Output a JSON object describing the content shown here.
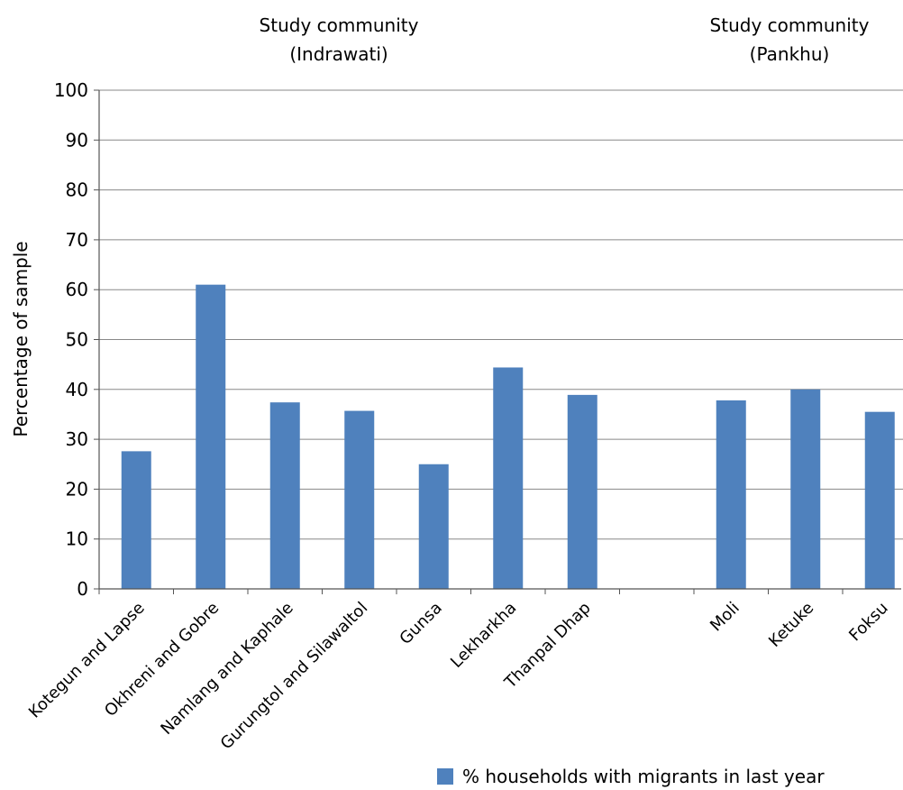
{
  "chart_data": {
    "type": "bar",
    "categories": [
      "Kotegun and Lapse",
      "Okhreni and Gobre",
      "Namlang and Kaphale",
      "Gurungtol and Silawaltol",
      "Gunsa",
      "Lekharkha",
      "Thanpal Dhap",
      "",
      "Moli",
      "Ketuke",
      "Foksu"
    ],
    "series": [
      {
        "name": "% households with migrants in last year",
        "values": [
          27.6,
          61,
          37.4,
          35.7,
          25,
          44.4,
          38.9,
          null,
          37.8,
          40,
          35.5
        ],
        "color": "#4f81bd"
      }
    ],
    "group_titles": [
      {
        "line1": "Study community",
        "line2": "(Indrawati)"
      },
      {
        "line1": "Study community",
        "line2": "(Pankhu)"
      }
    ],
    "ylabel": "Percentage of sample",
    "xlabel": "",
    "ylim": [
      0,
      100
    ],
    "yticks": [
      0,
      10,
      20,
      30,
      40,
      50,
      60,
      70,
      80,
      90,
      100
    ],
    "grid": true,
    "legend_position": "bottom-right"
  }
}
